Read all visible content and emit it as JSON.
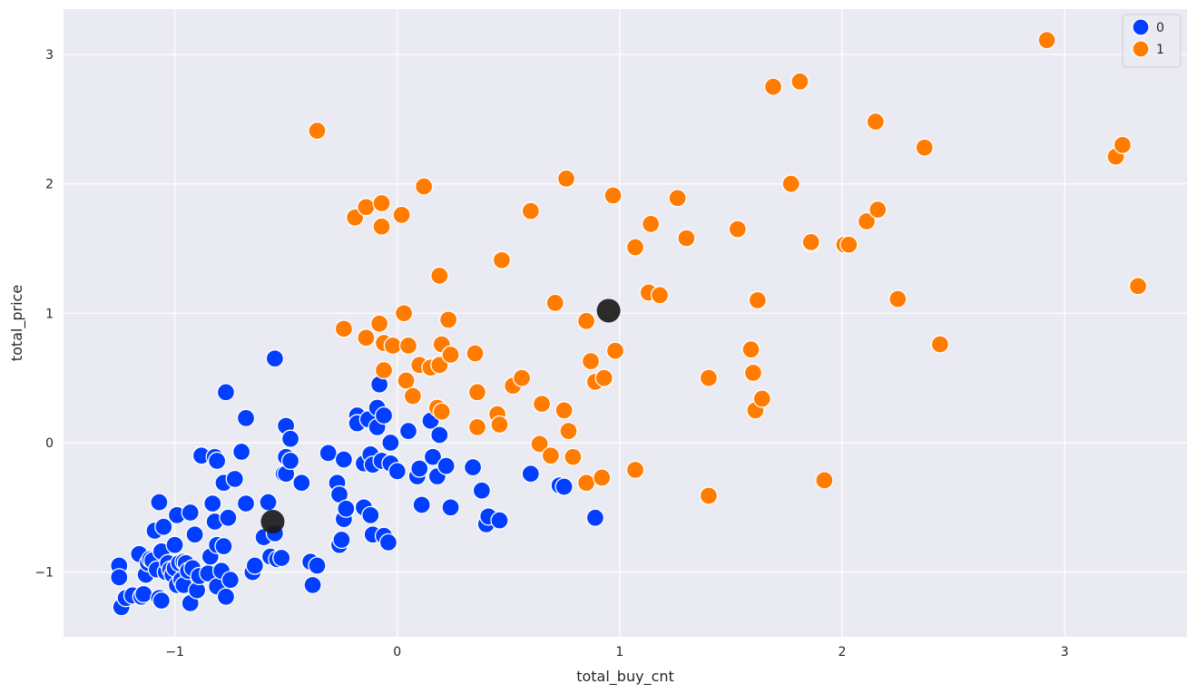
{
  "chart_data": {
    "type": "scatter",
    "xlabel": "total_buy_cnt",
    "ylabel": "total_price",
    "xlim": [
      -1.5,
      3.55
    ],
    "ylim": [
      -1.5,
      3.35
    ],
    "x_ticks": [
      -1,
      0,
      1,
      2,
      3
    ],
    "y_ticks": [
      -1,
      0,
      1,
      2,
      3
    ],
    "x_tick_labels": [
      "−1",
      "0",
      "1",
      "2",
      "3"
    ],
    "y_tick_labels": [
      "−1",
      "0",
      "1",
      "2",
      "3"
    ],
    "grid": true,
    "legend_position": "top-right",
    "colors": {
      "background": "#eaeaf2",
      "grid": "#ffffff",
      "series_0": "#023eff",
      "series_1": "#ff7c00",
      "centroid": "#1a1a1a"
    },
    "series": [
      {
        "name": "0",
        "points": [
          [
            -1.25,
            -0.95
          ],
          [
            -1.25,
            -1.04
          ],
          [
            -1.24,
            -1.27
          ],
          [
            -1.22,
            -1.2
          ],
          [
            -1.19,
            -1.18
          ],
          [
            -1.16,
            -0.86
          ],
          [
            -1.15,
            -1.19
          ],
          [
            -1.14,
            -1.17
          ],
          [
            -1.13,
            -1.02
          ],
          [
            -1.12,
            -0.93
          ],
          [
            -1.11,
            -0.9
          ],
          [
            -1.1,
            -0.91
          ],
          [
            -1.09,
            -0.68
          ],
          [
            -1.08,
            -0.98
          ],
          [
            -1.07,
            -1.2
          ],
          [
            -1.07,
            -0.46
          ],
          [
            -1.06,
            -1.22
          ],
          [
            -1.06,
            -0.84
          ],
          [
            -1.05,
            -0.65
          ],
          [
            -1.04,
            -1.0
          ],
          [
            -1.03,
            -0.93
          ],
          [
            -1.02,
            -0.98
          ],
          [
            -1.01,
            -1.02
          ],
          [
            -1.0,
            -0.97
          ],
          [
            -1.0,
            -0.79
          ],
          [
            -0.99,
            -1.1
          ],
          [
            -0.99,
            -0.56
          ],
          [
            -0.98,
            -0.93
          ],
          [
            -0.97,
            -1.06
          ],
          [
            -0.96,
            -1.1
          ],
          [
            -0.96,
            -0.92
          ],
          [
            -0.95,
            -0.93
          ],
          [
            -0.94,
            -0.99
          ],
          [
            -0.93,
            -0.54
          ],
          [
            -0.93,
            -1.24
          ],
          [
            -0.92,
            -0.97
          ],
          [
            -0.91,
            -0.71
          ],
          [
            -0.9,
            -1.14
          ],
          [
            -0.89,
            -1.03
          ],
          [
            -0.88,
            -0.1
          ],
          [
            -0.85,
            -1.01
          ],
          [
            -0.84,
            -0.88
          ],
          [
            -0.83,
            -0.47
          ],
          [
            -0.82,
            -0.11
          ],
          [
            -0.82,
            -0.61
          ],
          [
            -0.81,
            -0.79
          ],
          [
            -0.81,
            -1.11
          ],
          [
            -0.81,
            -0.14
          ],
          [
            -0.79,
            -0.99
          ],
          [
            -0.78,
            -0.31
          ],
          [
            -0.78,
            -0.8
          ],
          [
            -0.77,
            -1.19
          ],
          [
            -0.77,
            0.39
          ],
          [
            -0.76,
            -0.58
          ],
          [
            -0.75,
            -1.06
          ],
          [
            -0.73,
            -0.28
          ],
          [
            -0.7,
            -0.07
          ],
          [
            -0.68,
            -0.47
          ],
          [
            -0.68,
            0.19
          ],
          [
            -0.65,
            -1.0
          ],
          [
            -0.64,
            -0.95
          ],
          [
            -0.6,
            -0.73
          ],
          [
            -0.58,
            -0.46
          ],
          [
            -0.57,
            -0.88
          ],
          [
            -0.55,
            -0.7
          ],
          [
            -0.55,
            0.65
          ],
          [
            -0.54,
            -0.9
          ],
          [
            -0.52,
            -0.89
          ],
          [
            -0.51,
            -0.24
          ],
          [
            -0.5,
            -0.24
          ],
          [
            -0.5,
            0.13
          ],
          [
            -0.5,
            -0.11
          ],
          [
            -0.48,
            -0.14
          ],
          [
            -0.48,
            0.03
          ],
          [
            -0.43,
            -0.31
          ],
          [
            -0.39,
            -0.92
          ],
          [
            -0.38,
            -1.1
          ],
          [
            -0.36,
            -0.95
          ],
          [
            -0.31,
            -0.08
          ],
          [
            -0.27,
            -0.31
          ],
          [
            -0.26,
            -0.4
          ],
          [
            -0.26,
            -0.79
          ],
          [
            -0.25,
            -0.75
          ],
          [
            -0.24,
            -0.59
          ],
          [
            -0.24,
            -0.13
          ],
          [
            -0.23,
            -0.51
          ],
          [
            -0.18,
            0.21
          ],
          [
            -0.18,
            0.15
          ],
          [
            -0.15,
            -0.5
          ],
          [
            -0.15,
            -0.16
          ],
          [
            -0.13,
            0.18
          ],
          [
            -0.12,
            -0.09
          ],
          [
            -0.12,
            -0.56
          ],
          [
            -0.11,
            -0.17
          ],
          [
            -0.11,
            -0.71
          ],
          [
            -0.09,
            0.12
          ],
          [
            -0.09,
            0.27
          ],
          [
            -0.08,
            0.45
          ],
          [
            -0.07,
            -0.14
          ],
          [
            -0.06,
            0.21
          ],
          [
            -0.06,
            -0.72
          ],
          [
            -0.04,
            -0.77
          ],
          [
            -0.03,
            -0.16
          ],
          [
            -0.03,
            0.0
          ],
          [
            0.0,
            -0.22
          ],
          [
            0.05,
            0.09
          ],
          [
            0.09,
            -0.26
          ],
          [
            0.1,
            -0.2
          ],
          [
            0.11,
            -0.48
          ],
          [
            0.15,
            0.17
          ],
          [
            0.16,
            -0.11
          ],
          [
            0.18,
            -0.26
          ],
          [
            0.19,
            0.06
          ],
          [
            0.22,
            -0.18
          ],
          [
            0.24,
            -0.5
          ],
          [
            0.34,
            -0.19
          ],
          [
            0.38,
            -0.37
          ],
          [
            0.4,
            -0.63
          ],
          [
            0.41,
            -0.57
          ],
          [
            0.46,
            -0.6
          ],
          [
            0.6,
            -0.24
          ],
          [
            0.73,
            -0.33
          ],
          [
            0.75,
            -0.34
          ],
          [
            0.89,
            -0.58
          ]
        ]
      },
      {
        "name": "1",
        "points": [
          [
            -0.36,
            2.41
          ],
          [
            -0.24,
            0.88
          ],
          [
            -0.19,
            1.74
          ],
          [
            -0.14,
            0.81
          ],
          [
            -0.14,
            1.82
          ],
          [
            -0.08,
            0.92
          ],
          [
            -0.07,
            1.85
          ],
          [
            -0.07,
            1.67
          ],
          [
            -0.06,
            0.56
          ],
          [
            -0.06,
            0.77
          ],
          [
            -0.02,
            0.75
          ],
          [
            0.02,
            1.76
          ],
          [
            0.03,
            1.0
          ],
          [
            0.04,
            0.48
          ],
          [
            0.05,
            0.75
          ],
          [
            0.07,
            0.36
          ],
          [
            0.1,
            0.6
          ],
          [
            0.12,
            1.98
          ],
          [
            0.15,
            0.58
          ],
          [
            0.18,
            0.27
          ],
          [
            0.19,
            1.29
          ],
          [
            0.19,
            0.6
          ],
          [
            0.2,
            0.24
          ],
          [
            0.2,
            0.76
          ],
          [
            0.23,
            0.95
          ],
          [
            0.24,
            0.68
          ],
          [
            0.35,
            0.69
          ],
          [
            0.36,
            0.12
          ],
          [
            0.36,
            0.39
          ],
          [
            0.45,
            0.22
          ],
          [
            0.46,
            0.14
          ],
          [
            0.47,
            1.41
          ],
          [
            0.52,
            0.44
          ],
          [
            0.56,
            0.5
          ],
          [
            0.6,
            1.79
          ],
          [
            0.64,
            -0.01
          ],
          [
            0.65,
            0.3
          ],
          [
            0.69,
            -0.1
          ],
          [
            0.71,
            1.08
          ],
          [
            0.75,
            0.25
          ],
          [
            0.76,
            2.04
          ],
          [
            0.77,
            0.09
          ],
          [
            0.79,
            -0.11
          ],
          [
            0.85,
            -0.31
          ],
          [
            0.85,
            0.94
          ],
          [
            0.87,
            0.63
          ],
          [
            0.89,
            0.47
          ],
          [
            0.92,
            -0.27
          ],
          [
            0.93,
            0.5
          ],
          [
            0.97,
            1.91
          ],
          [
            0.98,
            0.71
          ],
          [
            1.07,
            1.51
          ],
          [
            1.07,
            -0.21
          ],
          [
            1.13,
            1.16
          ],
          [
            1.14,
            1.69
          ],
          [
            1.18,
            1.14
          ],
          [
            1.26,
            1.89
          ],
          [
            1.3,
            1.58
          ],
          [
            1.4,
            0.5
          ],
          [
            1.4,
            -0.41
          ],
          [
            1.53,
            1.65
          ],
          [
            1.59,
            0.72
          ],
          [
            1.6,
            0.54
          ],
          [
            1.61,
            0.25
          ],
          [
            1.62,
            1.1
          ],
          [
            1.64,
            0.34
          ],
          [
            1.69,
            2.75
          ],
          [
            1.77,
            2.0
          ],
          [
            1.81,
            2.79
          ],
          [
            1.86,
            1.54
          ],
          [
            1.86,
            1.55
          ],
          [
            1.92,
            -0.29
          ],
          [
            2.01,
            1.53
          ],
          [
            2.03,
            1.53
          ],
          [
            2.11,
            1.71
          ],
          [
            2.15,
            2.48
          ],
          [
            2.16,
            1.8
          ],
          [
            2.25,
            1.11
          ],
          [
            2.37,
            2.28
          ],
          [
            2.44,
            0.76
          ],
          [
            2.92,
            3.11
          ],
          [
            3.23,
            2.21
          ],
          [
            3.26,
            2.3
          ],
          [
            3.33,
            1.21
          ]
        ]
      }
    ],
    "centroids": [
      [
        -0.56,
        -0.61
      ],
      [
        0.95,
        1.02
      ]
    ]
  }
}
